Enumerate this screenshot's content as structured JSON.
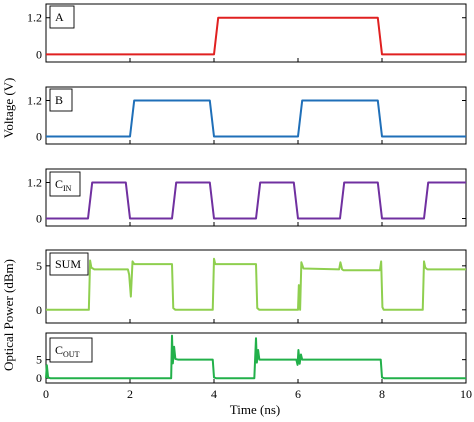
{
  "chart_data": {
    "type": "line",
    "xlabel": "Time (ns)",
    "xlim": [
      0,
      10
    ],
    "xticks": [
      "0",
      "2",
      "4",
      "6",
      "8",
      "10"
    ],
    "ylabel_voltage": "Voltage (V)",
    "ylabel_optical": "Optical Power (dBm)",
    "panels": [
      {
        "label": "A",
        "label_sub": "",
        "unit": "V",
        "color": "#e02020",
        "ylim": [
          -0.25,
          1.65
        ],
        "yticks": [
          "0",
          "1.2"
        ],
        "x": [
          0,
          4.0,
          4.1,
          7.9,
          8.0,
          10
        ],
        "y": [
          0,
          0,
          1.2,
          1.2,
          0,
          0
        ]
      },
      {
        "label": "B",
        "label_sub": "",
        "unit": "V",
        "color": "#1f6fb8",
        "ylim": [
          -0.25,
          1.65
        ],
        "yticks": [
          "0",
          "1.2"
        ],
        "x": [
          0,
          2.0,
          2.1,
          3.9,
          4.0,
          6.0,
          6.1,
          7.9,
          8.0,
          10
        ],
        "y": [
          0,
          0,
          1.2,
          1.2,
          0,
          0,
          1.2,
          1.2,
          0,
          0
        ]
      },
      {
        "label": "C",
        "label_sub": "IN",
        "unit": "V",
        "color": "#7030a0",
        "ylim": [
          -0.25,
          1.65
        ],
        "yticks": [
          "0",
          "1.2"
        ],
        "x": [
          0,
          1.0,
          1.1,
          1.9,
          2.0,
          3.0,
          3.1,
          3.9,
          4.0,
          5.0,
          5.1,
          5.9,
          6.0,
          7.0,
          7.1,
          7.9,
          8.0,
          9.0,
          9.1,
          10
        ],
        "y": [
          0,
          0,
          1.2,
          1.2,
          0,
          0,
          1.2,
          1.2,
          0,
          0,
          1.2,
          1.2,
          0,
          0,
          1.2,
          1.2,
          0,
          0,
          1.2,
          1.2
        ]
      },
      {
        "label": "SUM",
        "label_sub": "",
        "unit": "dBm",
        "color": "#8fcf4f",
        "ylim": [
          -1.5,
          6.8
        ],
        "yticks": [
          "0",
          "5"
        ],
        "x": [
          0,
          1.02,
          1.05,
          1.08,
          1.15,
          1.95,
          1.98,
          2.02,
          2.06,
          2.1,
          3.0,
          3.03,
          3.08,
          3.97,
          4.0,
          4.03,
          4.06,
          5.0,
          5.03,
          5.08,
          5.97,
          6.0,
          6.02,
          6.05,
          6.08,
          6.13,
          6.98,
          7.01,
          7.05,
          7.08,
          7.15,
          7.95,
          7.98,
          8.01,
          8.04,
          8.08,
          8.97,
          9.0,
          9.03,
          9.08,
          10
        ],
        "y": [
          0,
          0,
          5.6,
          4.8,
          4.6,
          4.6,
          4.0,
          1.5,
          5.5,
          5.2,
          5.2,
          0.2,
          0,
          0,
          5.8,
          5.2,
          5.2,
          5.2,
          0.2,
          0,
          0,
          0,
          2.8,
          0,
          5.4,
          4.7,
          4.6,
          5.4,
          4.6,
          4.5,
          4.5,
          4.5,
          5.5,
          0.3,
          0,
          0,
          0,
          5.5,
          4.8,
          4.6,
          4.6
        ]
      },
      {
        "label": "C",
        "label_sub": "OUT",
        "unit": "dBm",
        "color": "#22b04a",
        "ylim": [
          -1.3,
          12.2
        ],
        "yticks": [
          "0",
          "5"
        ],
        "x": [
          0,
          0.02,
          0.05,
          0.1,
          2.98,
          3.0,
          3.02,
          3.05,
          3.08,
          3.15,
          3.97,
          4.0,
          4.05,
          4.96,
          5.0,
          5.02,
          5.05,
          5.08,
          5.15,
          5.96,
          5.99,
          6.01,
          6.04,
          6.07,
          6.1,
          6.15,
          7.97,
          8.0,
          8.05,
          10
        ],
        "y": [
          0,
          3.5,
          0.2,
          0,
          0,
          11.5,
          4.0,
          8.5,
          5.2,
          5.0,
          5.0,
          0.2,
          0,
          0,
          10.8,
          4.2,
          7.6,
          5.0,
          5.0,
          5.0,
          3.6,
          7.6,
          3.9,
          6.4,
          5.0,
          5.0,
          5.0,
          0.2,
          0,
          0
        ]
      }
    ]
  }
}
